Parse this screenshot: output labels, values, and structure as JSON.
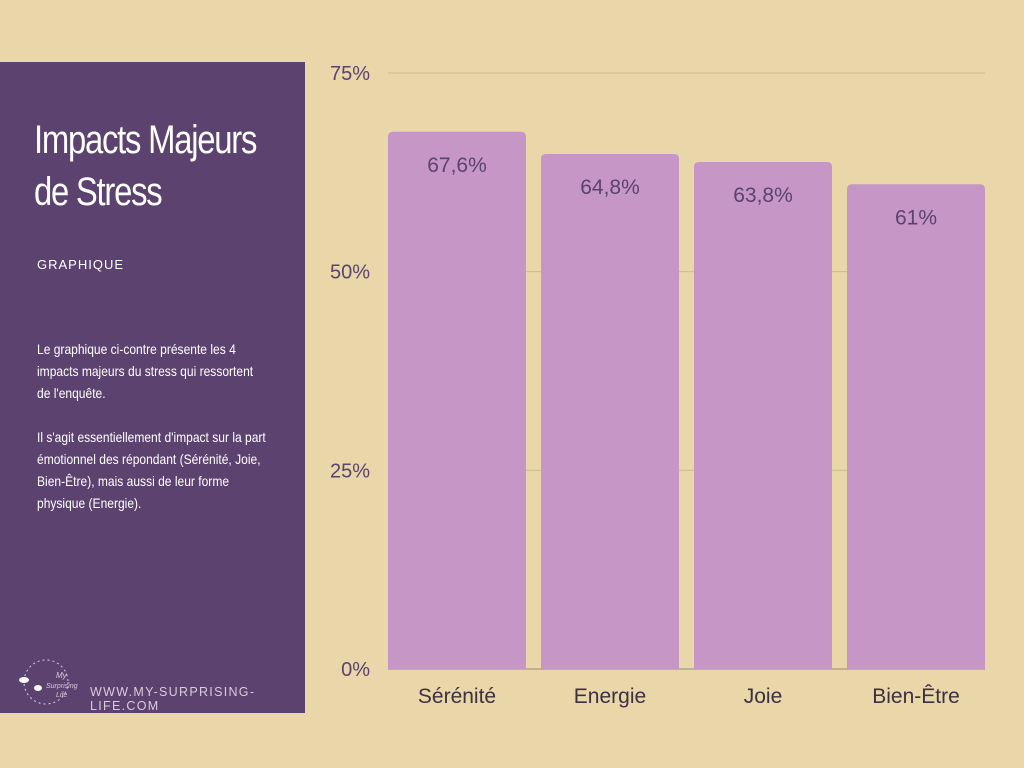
{
  "panel": {
    "title_line1": "Impacts Majeurs",
    "title_line2": "de Stress",
    "subtitle": "GRAPHIQUE",
    "paragraph1": "Le graphique ci-contre présente les 4 impacts majeurs du stress qui ressortent de l'enquête.",
    "paragraph2": "Il s'agit essentiellement d'impact sur la part émotionnel des répondant (Sérénité, Joie, Bien-Être), mais aussi de leur forme physique (Energie).",
    "logo_text": "My Surprising Life",
    "url": "WWW.MY-SURPRISING-LIFE.COM"
  },
  "colors": {
    "background": "#E9D6A9",
    "panel": "#5C426F",
    "bar": "#C697C6",
    "grid": "#C9BD8E",
    "label": "#5C426F"
  },
  "chart_data": {
    "type": "bar",
    "categories": [
      "Sérénité",
      "Energie",
      "Joie",
      "Bien-Être"
    ],
    "values": [
      67.6,
      64.8,
      63.8,
      61
    ],
    "data_labels": [
      "67,6%",
      "64,8%",
      "63,8%",
      "61%"
    ],
    "ylim": [
      0,
      75
    ],
    "yticks": [
      0,
      25,
      50,
      75
    ],
    "ytick_labels": [
      "0%",
      "25%",
      "50%",
      "75%"
    ],
    "grid": true,
    "title": "",
    "xlabel": "",
    "ylabel": ""
  }
}
